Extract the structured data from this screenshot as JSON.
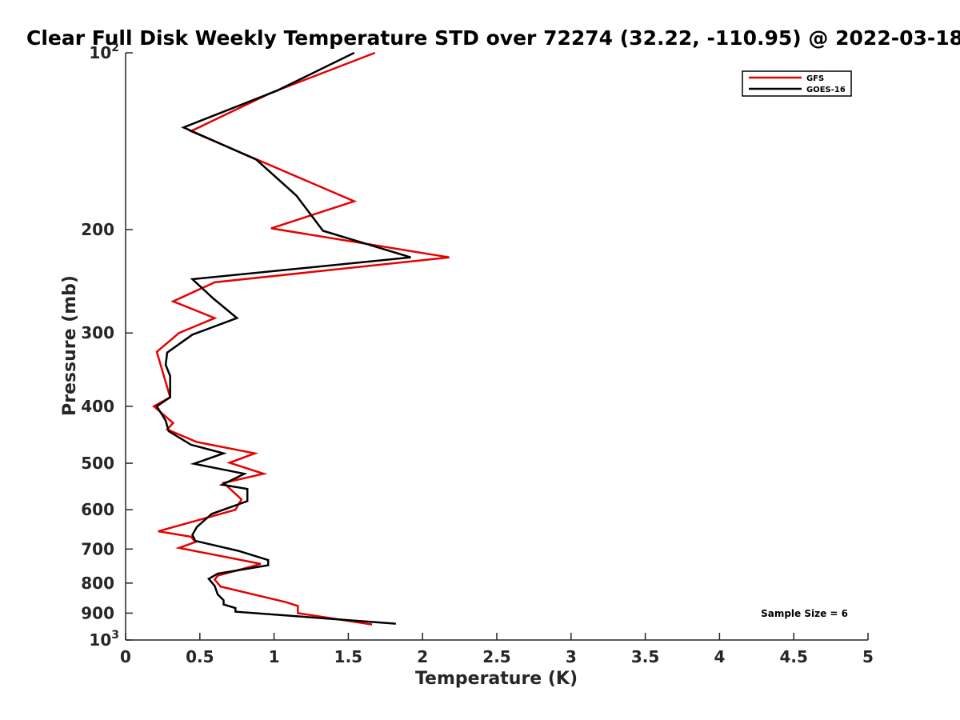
{
  "chart_data": {
    "type": "line",
    "title": "Clear Full Disk Weekly Temperature STD over 72274 (32.22, -110.95) @ 2022-03-18",
    "xlabel": "Temperature (K)",
    "ylabel": "Pressure (mb)",
    "xlim": [
      0,
      5
    ],
    "ylim": [
      100,
      1000
    ],
    "yscale": "log",
    "y_reversed": true,
    "x_ticks": [
      "0",
      "0.5",
      "1",
      "1.5",
      "2",
      "2.5",
      "3",
      "3.5",
      "4",
      "4.5",
      "5"
    ],
    "y_ticks": [
      {
        "value": 100,
        "base": "10",
        "exp": "2"
      },
      {
        "value": 200,
        "label": "200"
      },
      {
        "value": 300,
        "label": "300"
      },
      {
        "value": 400,
        "label": "400"
      },
      {
        "value": 500,
        "label": "500"
      },
      {
        "value": 600,
        "label": "600"
      },
      {
        "value": 700,
        "label": "700"
      },
      {
        "value": 800,
        "label": "800"
      },
      {
        "value": 900,
        "label": "900"
      },
      {
        "value": 1000,
        "base": "10",
        "exp": "3"
      }
    ],
    "grid": false,
    "legend_position": "top-right",
    "annotation": "Sample Size = 6",
    "series": [
      {
        "name": "GFS",
        "color": "#e60000",
        "points": [
          [
            1.68,
            100
          ],
          [
            0.98,
            117
          ],
          [
            0.44,
            136
          ],
          [
            1.54,
            179
          ],
          [
            0.98,
            199
          ],
          [
            2.18,
            223
          ],
          [
            0.6,
            246
          ],
          [
            0.32,
            265
          ],
          [
            0.6,
            283
          ],
          [
            0.36,
            300
          ],
          [
            0.21,
            323
          ],
          [
            0.3,
            386
          ],
          [
            0.19,
            400
          ],
          [
            0.32,
            427
          ],
          [
            0.28,
            438
          ],
          [
            0.48,
            460
          ],
          [
            0.87,
            481
          ],
          [
            0.7,
            499
          ],
          [
            0.93,
            521
          ],
          [
            0.66,
            540
          ],
          [
            0.78,
            576
          ],
          [
            0.74,
            600
          ],
          [
            0.22,
            653
          ],
          [
            0.44,
            667
          ],
          [
            0.47,
            681
          ],
          [
            0.36,
            697
          ],
          [
            0.72,
            726
          ],
          [
            0.91,
            742
          ],
          [
            0.62,
            777
          ],
          [
            0.6,
            789
          ],
          [
            0.64,
            811
          ],
          [
            1.08,
            862
          ],
          [
            1.16,
            875
          ],
          [
            1.16,
            900
          ],
          [
            1.66,
            941
          ]
        ]
      },
      {
        "name": "GOES-16",
        "color": "#000000",
        "points": [
          [
            1.54,
            100
          ],
          [
            1.02,
            116
          ],
          [
            0.39,
            134
          ],
          [
            0.88,
            152
          ],
          [
            1.15,
            175
          ],
          [
            1.33,
            201
          ],
          [
            1.92,
            223
          ],
          [
            0.45,
            243
          ],
          [
            0.59,
            262
          ],
          [
            0.75,
            283
          ],
          [
            0.45,
            302
          ],
          [
            0.28,
            324
          ],
          [
            0.27,
            340
          ],
          [
            0.3,
            355
          ],
          [
            0.3,
            386
          ],
          [
            0.21,
            400
          ],
          [
            0.27,
            423
          ],
          [
            0.29,
            441
          ],
          [
            0.44,
            465
          ],
          [
            0.66,
            481
          ],
          [
            0.46,
            501
          ],
          [
            0.8,
            521
          ],
          [
            0.65,
            544
          ],
          [
            0.82,
            553
          ],
          [
            0.82,
            580
          ],
          [
            0.58,
            610
          ],
          [
            0.48,
            642
          ],
          [
            0.45,
            662
          ],
          [
            0.47,
            678
          ],
          [
            0.76,
            705
          ],
          [
            0.96,
            731
          ],
          [
            0.96,
            746
          ],
          [
            0.62,
            771
          ],
          [
            0.56,
            787
          ],
          [
            0.6,
            809
          ],
          [
            0.62,
            836
          ],
          [
            0.66,
            856
          ],
          [
            0.66,
            870
          ],
          [
            0.74,
            882
          ],
          [
            0.74,
            895
          ],
          [
            1.82,
            938
          ]
        ]
      }
    ]
  }
}
